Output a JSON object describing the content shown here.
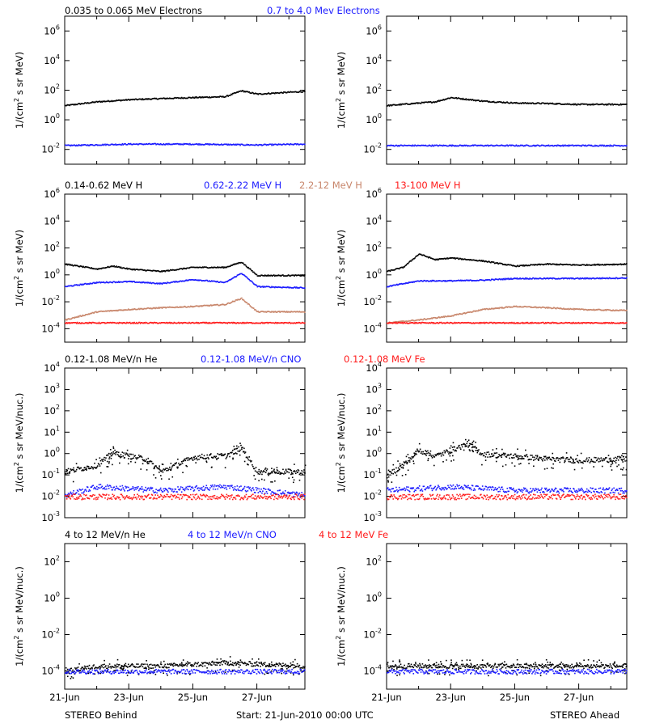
{
  "colors": {
    "black": "#000000",
    "blue": "#1a1aff",
    "brown": "#c8866b",
    "red": "#ff1a1a"
  },
  "footer": {
    "left": "STEREO Behind",
    "center": "Start: 21-Jun-2010 00:00 UTC",
    "right": "STEREO Ahead"
  },
  "x_ticks": [
    "21-Jun",
    "23-Jun",
    "25-Jun",
    "27-Jun"
  ],
  "rows": [
    {
      "ylabel_main": "1/(cm",
      "ylabel_sup": "2",
      "ylabel_rest": " s sr MeV)",
      "legend": [
        {
          "text": "0.035 to 0.065 MeV Electrons",
          "color": "black"
        },
        {
          "text": "0.7 to 4.0 Mev Electrons",
          "color": "blue"
        }
      ]
    },
    {
      "ylabel_main": "1/(cm",
      "ylabel_sup": "2",
      "ylabel_rest": " s sr MeV)",
      "legend": [
        {
          "text": "0.14-0.62 MeV H",
          "color": "black"
        },
        {
          "text": "0.62-2.22 MeV H",
          "color": "blue"
        },
        {
          "text": "2.2-12 MeV H",
          "color": "brown"
        },
        {
          "text": "13-100 MeV H",
          "color": "red"
        }
      ]
    },
    {
      "ylabel_main": "1/(cm",
      "ylabel_sup": "2",
      "ylabel_rest": " s sr MeV/nuc.)",
      "legend": [
        {
          "text": "0.12-1.08 MeV/n He",
          "color": "black"
        },
        {
          "text": "0.12-1.08 MeV/n CNO",
          "color": "blue"
        },
        {
          "text": "0.12-1.08 MeV Fe",
          "color": "red"
        }
      ]
    },
    {
      "ylabel_main": "1/(cm",
      "ylabel_sup": "2",
      "ylabel_rest": " s sr MeV/nuc.)",
      "legend": [
        {
          "text": "4 to 12 MeV/n He",
          "color": "black"
        },
        {
          "text": "4 to 12 MeV/n CNO",
          "color": "blue"
        },
        {
          "text": "4 to 12 MeV Fe",
          "color": "red"
        }
      ]
    }
  ],
  "chart_data": [
    {
      "id": "behind-electrons",
      "type": "scatter",
      "spacecraft": "STEREO Behind",
      "xlim": [
        "2010-06-21",
        "2010-06-28 12:00"
      ],
      "ylim": [
        0.001,
        10000000
      ],
      "yscale": "log",
      "yticks": [
        0.01,
        1,
        100,
        10000,
        1000000
      ],
      "series": [
        {
          "name": "0.035 to 0.065 MeV Electrons",
          "color": "black",
          "points": [
            [
              "2010-06-21",
              10
            ],
            [
              "2010-06-22",
              18
            ],
            [
              "2010-06-23",
              25
            ],
            [
              "2010-06-24",
              30
            ],
            [
              "2010-06-25",
              35
            ],
            [
              "2010-06-26",
              40
            ],
            [
              "2010-06-26 12:00",
              100
            ],
            [
              "2010-06-27",
              60
            ],
            [
              "2010-06-28",
              80
            ],
            [
              "2010-06-28 12:00",
              90
            ]
          ]
        },
        {
          "name": "0.7 to 4.0 Mev Electrons",
          "color": "blue",
          "points": [
            [
              "2010-06-21",
              0.02
            ],
            [
              "2010-06-23",
              0.025
            ],
            [
              "2010-06-25",
              0.025
            ],
            [
              "2010-06-27",
              0.022
            ],
            [
              "2010-06-28 12:00",
              0.025
            ]
          ]
        }
      ]
    },
    {
      "id": "ahead-electrons",
      "type": "scatter",
      "spacecraft": "STEREO Ahead",
      "xlim": [
        "2010-06-21",
        "2010-06-28 12:00"
      ],
      "ylim": [
        0.001,
        10000000
      ],
      "yscale": "log",
      "yticks": [
        0.01,
        1,
        100,
        10000,
        1000000
      ],
      "series": [
        {
          "name": "0.035 to 0.065 MeV Electrons",
          "color": "black",
          "points": [
            [
              "2010-06-21",
              10
            ],
            [
              "2010-06-22",
              15
            ],
            [
              "2010-06-22 12:00",
              18
            ],
            [
              "2010-06-23",
              35
            ],
            [
              "2010-06-24",
              20
            ],
            [
              "2010-06-25",
              15
            ],
            [
              "2010-06-26",
              14
            ],
            [
              "2010-06-27",
              12
            ],
            [
              "2010-06-28 12:00",
              12
            ]
          ]
        },
        {
          "name": "0.7 to 4.0 Mev Electrons",
          "color": "blue",
          "points": [
            [
              "2010-06-21",
              0.02
            ],
            [
              "2010-06-23",
              0.02
            ],
            [
              "2010-06-25",
              0.02
            ],
            [
              "2010-06-27",
              0.02
            ],
            [
              "2010-06-28 12:00",
              0.02
            ]
          ]
        }
      ]
    },
    {
      "id": "behind-protons",
      "type": "scatter",
      "spacecraft": "STEREO Behind",
      "xlim": [
        "2010-06-21",
        "2010-06-28 12:00"
      ],
      "ylim": [
        1e-05,
        1000000
      ],
      "yscale": "log",
      "yticks": [
        0.0001,
        0.01,
        1,
        100,
        10000,
        1000000
      ],
      "series": [
        {
          "name": "0.14-0.62 MeV H",
          "color": "black",
          "points": [
            [
              "2010-06-21",
              7
            ],
            [
              "2010-06-22",
              3
            ],
            [
              "2010-06-22 12:00",
              5
            ],
            [
              "2010-06-23",
              3
            ],
            [
              "2010-06-24",
              2
            ],
            [
              "2010-06-25",
              4
            ],
            [
              "2010-06-26",
              4
            ],
            [
              "2010-06-26 12:00",
              10
            ],
            [
              "2010-06-27",
              1
            ],
            [
              "2010-06-28 12:00",
              1
            ]
          ]
        },
        {
          "name": "0.62-2.22 MeV H",
          "color": "blue",
          "points": [
            [
              "2010-06-21",
              0.15
            ],
            [
              "2010-06-22",
              0.3
            ],
            [
              "2010-06-23",
              0.35
            ],
            [
              "2010-06-24",
              0.25
            ],
            [
              "2010-06-25",
              0.5
            ],
            [
              "2010-06-26",
              0.3
            ],
            [
              "2010-06-26 12:00",
              1.5
            ],
            [
              "2010-06-27",
              0.15
            ],
            [
              "2010-06-28 12:00",
              0.12
            ]
          ]
        },
        {
          "name": "2.2-12 MeV H",
          "color": "brown",
          "points": [
            [
              "2010-06-21",
              0.0005
            ],
            [
              "2010-06-22",
              0.002
            ],
            [
              "2010-06-23",
              0.003
            ],
            [
              "2010-06-24",
              0.004
            ],
            [
              "2010-06-25",
              0.005
            ],
            [
              "2010-06-26",
              0.007
            ],
            [
              "2010-06-26 12:00",
              0.02
            ],
            [
              "2010-06-27",
              0.002
            ],
            [
              "2010-06-28 12:00",
              0.002
            ]
          ]
        },
        {
          "name": "13-100 MeV H",
          "color": "red",
          "points": [
            [
              "2010-06-21",
              0.0003
            ],
            [
              "2010-06-23",
              0.0003
            ],
            [
              "2010-06-25",
              0.0003
            ],
            [
              "2010-06-27",
              0.0003
            ],
            [
              "2010-06-28 12:00",
              0.0003
            ]
          ]
        }
      ]
    },
    {
      "id": "ahead-protons",
      "type": "scatter",
      "spacecraft": "STEREO Ahead",
      "xlim": [
        "2010-06-21",
        "2010-06-28 12:00"
      ],
      "ylim": [
        1e-05,
        1000000
      ],
      "yscale": "log",
      "yticks": [
        0.0001,
        0.01,
        1,
        100,
        10000,
        1000000
      ],
      "series": [
        {
          "name": "0.14-0.62 MeV H",
          "color": "black",
          "points": [
            [
              "2010-06-21",
              2
            ],
            [
              "2010-06-21 12:00",
              4
            ],
            [
              "2010-06-22",
              40
            ],
            [
              "2010-06-22 12:00",
              15
            ],
            [
              "2010-06-23",
              20
            ],
            [
              "2010-06-24",
              12
            ],
            [
              "2010-06-25",
              5
            ],
            [
              "2010-06-26",
              7
            ],
            [
              "2010-06-27",
              6
            ],
            [
              "2010-06-28 12:00",
              7
            ]
          ]
        },
        {
          "name": "0.62-2.22 MeV H",
          "color": "blue",
          "points": [
            [
              "2010-06-21",
              0.15
            ],
            [
              "2010-06-22",
              0.4
            ],
            [
              "2010-06-23",
              0.4
            ],
            [
              "2010-06-24",
              0.45
            ],
            [
              "2010-06-25",
              0.6
            ],
            [
              "2010-06-26",
              0.6
            ],
            [
              "2010-06-27",
              0.6
            ],
            [
              "2010-06-28 12:00",
              0.65
            ]
          ]
        },
        {
          "name": "2.2-12 MeV H",
          "color": "brown",
          "points": [
            [
              "2010-06-21",
              0.0003
            ],
            [
              "2010-06-22",
              0.0005
            ],
            [
              "2010-06-23",
              0.001
            ],
            [
              "2010-06-24",
              0.003
            ],
            [
              "2010-06-25",
              0.005
            ],
            [
              "2010-06-26",
              0.004
            ],
            [
              "2010-06-27",
              0.003
            ],
            [
              "2010-06-28 12:00",
              0.0025
            ]
          ]
        },
        {
          "name": "13-100 MeV H",
          "color": "red",
          "points": [
            [
              "2010-06-21",
              0.0003
            ],
            [
              "2010-06-23",
              0.0003
            ],
            [
              "2010-06-25",
              0.0003
            ],
            [
              "2010-06-27",
              0.0003
            ],
            [
              "2010-06-28 12:00",
              0.0003
            ]
          ]
        }
      ]
    },
    {
      "id": "behind-heavy-low",
      "type": "scatter",
      "spacecraft": "STEREO Behind",
      "xlim": [
        "2010-06-21",
        "2010-06-28 12:00"
      ],
      "ylim": [
        0.001,
        10000
      ],
      "yscale": "log",
      "yticks": [
        0.001,
        0.01,
        0.1,
        1,
        10,
        100,
        1000,
        10000
      ],
      "series": [
        {
          "name": "0.12-1.08 MeV/n He",
          "color": "black",
          "points": [
            [
              "2010-06-21",
              0.15
            ],
            [
              "2010-06-22",
              0.3
            ],
            [
              "2010-06-22 12:00",
              1.2
            ],
            [
              "2010-06-23",
              0.8
            ],
            [
              "2010-06-23 12:00",
              0.6
            ],
            [
              "2010-06-24",
              0.15
            ],
            [
              "2010-06-25",
              0.7
            ],
            [
              "2010-06-25 12:00",
              0.8
            ],
            [
              "2010-06-26",
              0.8
            ],
            [
              "2010-06-26 12:00",
              2
            ],
            [
              "2010-06-27",
              0.15
            ],
            [
              "2010-06-28 12:00",
              0.15
            ]
          ]
        },
        {
          "name": "0.12-1.08 MeV/n CNO",
          "color": "blue",
          "points": [
            [
              "2010-06-21",
              0.012
            ],
            [
              "2010-06-22",
              0.03
            ],
            [
              "2010-06-24",
              0.02
            ],
            [
              "2010-06-26",
              0.03
            ],
            [
              "2010-06-28 12:00",
              0.012
            ]
          ]
        },
        {
          "name": "0.12-1.08 MeV Fe",
          "color": "red",
          "points": [
            [
              "2010-06-21",
              0.01
            ],
            [
              "2010-06-23",
              0.01
            ],
            [
              "2010-06-25",
              0.01
            ],
            [
              "2010-06-27",
              0.01
            ],
            [
              "2010-06-28 12:00",
              0.01
            ]
          ]
        }
      ]
    },
    {
      "id": "ahead-heavy-low",
      "type": "scatter",
      "spacecraft": "STEREO Ahead",
      "xlim": [
        "2010-06-21",
        "2010-06-28 12:00"
      ],
      "ylim": [
        0.001,
        10000
      ],
      "yscale": "log",
      "yticks": [
        0.001,
        0.01,
        0.1,
        1,
        10,
        100,
        1000,
        10000
      ],
      "series": [
        {
          "name": "0.12-1.08 MeV/n He",
          "color": "black",
          "points": [
            [
              "2010-06-21",
              0.1
            ],
            [
              "2010-06-21 12:00",
              0.3
            ],
            [
              "2010-06-22",
              1.5
            ],
            [
              "2010-06-22 12:00",
              0.8
            ],
            [
              "2010-06-23",
              1.5
            ],
            [
              "2010-06-23 12:00",
              3
            ],
            [
              "2010-06-24",
              1
            ],
            [
              "2010-06-25",
              0.8
            ],
            [
              "2010-06-26",
              0.6
            ],
            [
              "2010-06-27",
              0.5
            ],
            [
              "2010-06-28 12:00",
              0.6
            ]
          ]
        },
        {
          "name": "0.12-1.08 MeV/n CNO",
          "color": "blue",
          "points": [
            [
              "2010-06-21",
              0.02
            ],
            [
              "2010-06-23",
              0.03
            ],
            [
              "2010-06-25",
              0.02
            ],
            [
              "2010-06-27",
              0.02
            ],
            [
              "2010-06-28 12:00",
              0.02
            ]
          ]
        },
        {
          "name": "0.12-1.08 MeV Fe",
          "color": "red",
          "points": [
            [
              "2010-06-21",
              0.01
            ],
            [
              "2010-06-23",
              0.01
            ],
            [
              "2010-06-25",
              0.01
            ],
            [
              "2010-06-27",
              0.01
            ],
            [
              "2010-06-28 12:00",
              0.01
            ]
          ]
        }
      ]
    },
    {
      "id": "behind-heavy-high",
      "type": "scatter",
      "spacecraft": "STEREO Behind",
      "xlim": [
        "2010-06-21",
        "2010-06-28 12:00"
      ],
      "ylim": [
        1e-05,
        1000
      ],
      "yscale": "log",
      "yticks": [
        0.0001,
        0.01,
        1,
        100
      ],
      "series": [
        {
          "name": "4 to 12 MeV/n He",
          "color": "black",
          "points": [
            [
              "2010-06-21",
              0.0001
            ],
            [
              "2010-06-22",
              0.0002
            ],
            [
              "2010-06-24",
              0.0002
            ],
            [
              "2010-06-26",
              0.0003
            ],
            [
              "2010-06-28 12:00",
              0.0002
            ]
          ]
        },
        {
          "name": "4 to 12 MeV/n CNO",
          "color": "blue",
          "points": [
            [
              "2010-06-21",
              0.0001
            ],
            [
              "2010-06-28 12:00",
              0.0001
            ]
          ]
        },
        {
          "name": "4 to 12 MeV Fe",
          "color": "red",
          "points": []
        }
      ]
    },
    {
      "id": "ahead-heavy-high",
      "type": "scatter",
      "spacecraft": "STEREO Ahead",
      "xlim": [
        "2010-06-21",
        "2010-06-28 12:00"
      ],
      "ylim": [
        1e-05,
        1000
      ],
      "yscale": "log",
      "yticks": [
        0.0001,
        0.01,
        1,
        100
      ],
      "series": [
        {
          "name": "4 to 12 MeV/n He",
          "color": "black",
          "points": [
            [
              "2010-06-22",
              0.0002
            ],
            [
              "2010-06-25",
              0.0002
            ],
            [
              "2010-06-27",
              0.0002
            ]
          ]
        },
        {
          "name": "4 to 12 MeV/n CNO",
          "color": "blue",
          "points": [
            [
              "2010-06-21",
              0.0001
            ],
            [
              "2010-06-28 12:00",
              0.0001
            ]
          ]
        },
        {
          "name": "4 to 12 MeV Fe",
          "color": "red",
          "points": []
        }
      ]
    }
  ]
}
